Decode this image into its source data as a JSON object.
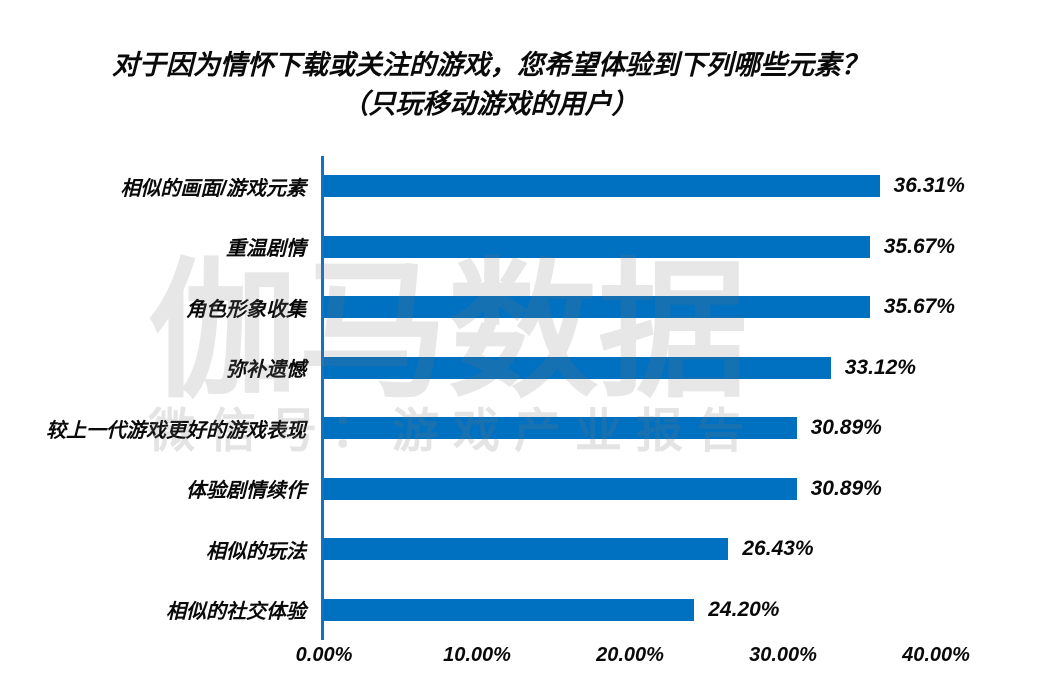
{
  "title": {
    "line1": "对于因为情怀下载或关注的游戏，您希望体验到下列哪些元素？",
    "line2": "（只玩移动游戏的用户）"
  },
  "watermark": {
    "line1": "伽马数据",
    "line2": "微信号：游戏产业报告"
  },
  "chart_data": {
    "type": "bar",
    "orientation": "horizontal",
    "title": "对于因为情怀下载或关注的游戏，您希望体验到下列哪些元素？（只玩移动游戏的用户）",
    "categories": [
      "相似的画面/游戏元素",
      "重温剧情",
      "角色形象收集",
      "弥补遗憾",
      "较上一代游戏更好的游戏表现",
      "体验剧情续作",
      "相似的玩法",
      "相似的社交体验"
    ],
    "values": [
      36.31,
      35.67,
      35.67,
      33.12,
      30.89,
      30.89,
      26.43,
      24.2
    ],
    "value_labels": [
      "36.31%",
      "35.67%",
      "35.67%",
      "33.12%",
      "30.89%",
      "30.89%",
      "26.43%",
      "24.20%"
    ],
    "x_ticks": [
      "0.00%",
      "10.00%",
      "20.00%",
      "30.00%",
      "40.00%"
    ],
    "xlim": [
      0,
      40
    ],
    "xlabel": "",
    "ylabel": "",
    "grid": false,
    "data_labels": true,
    "bar_color": "#0070C0",
    "axis_color": "#1372bf",
    "text_color": "#0a0a0a"
  }
}
